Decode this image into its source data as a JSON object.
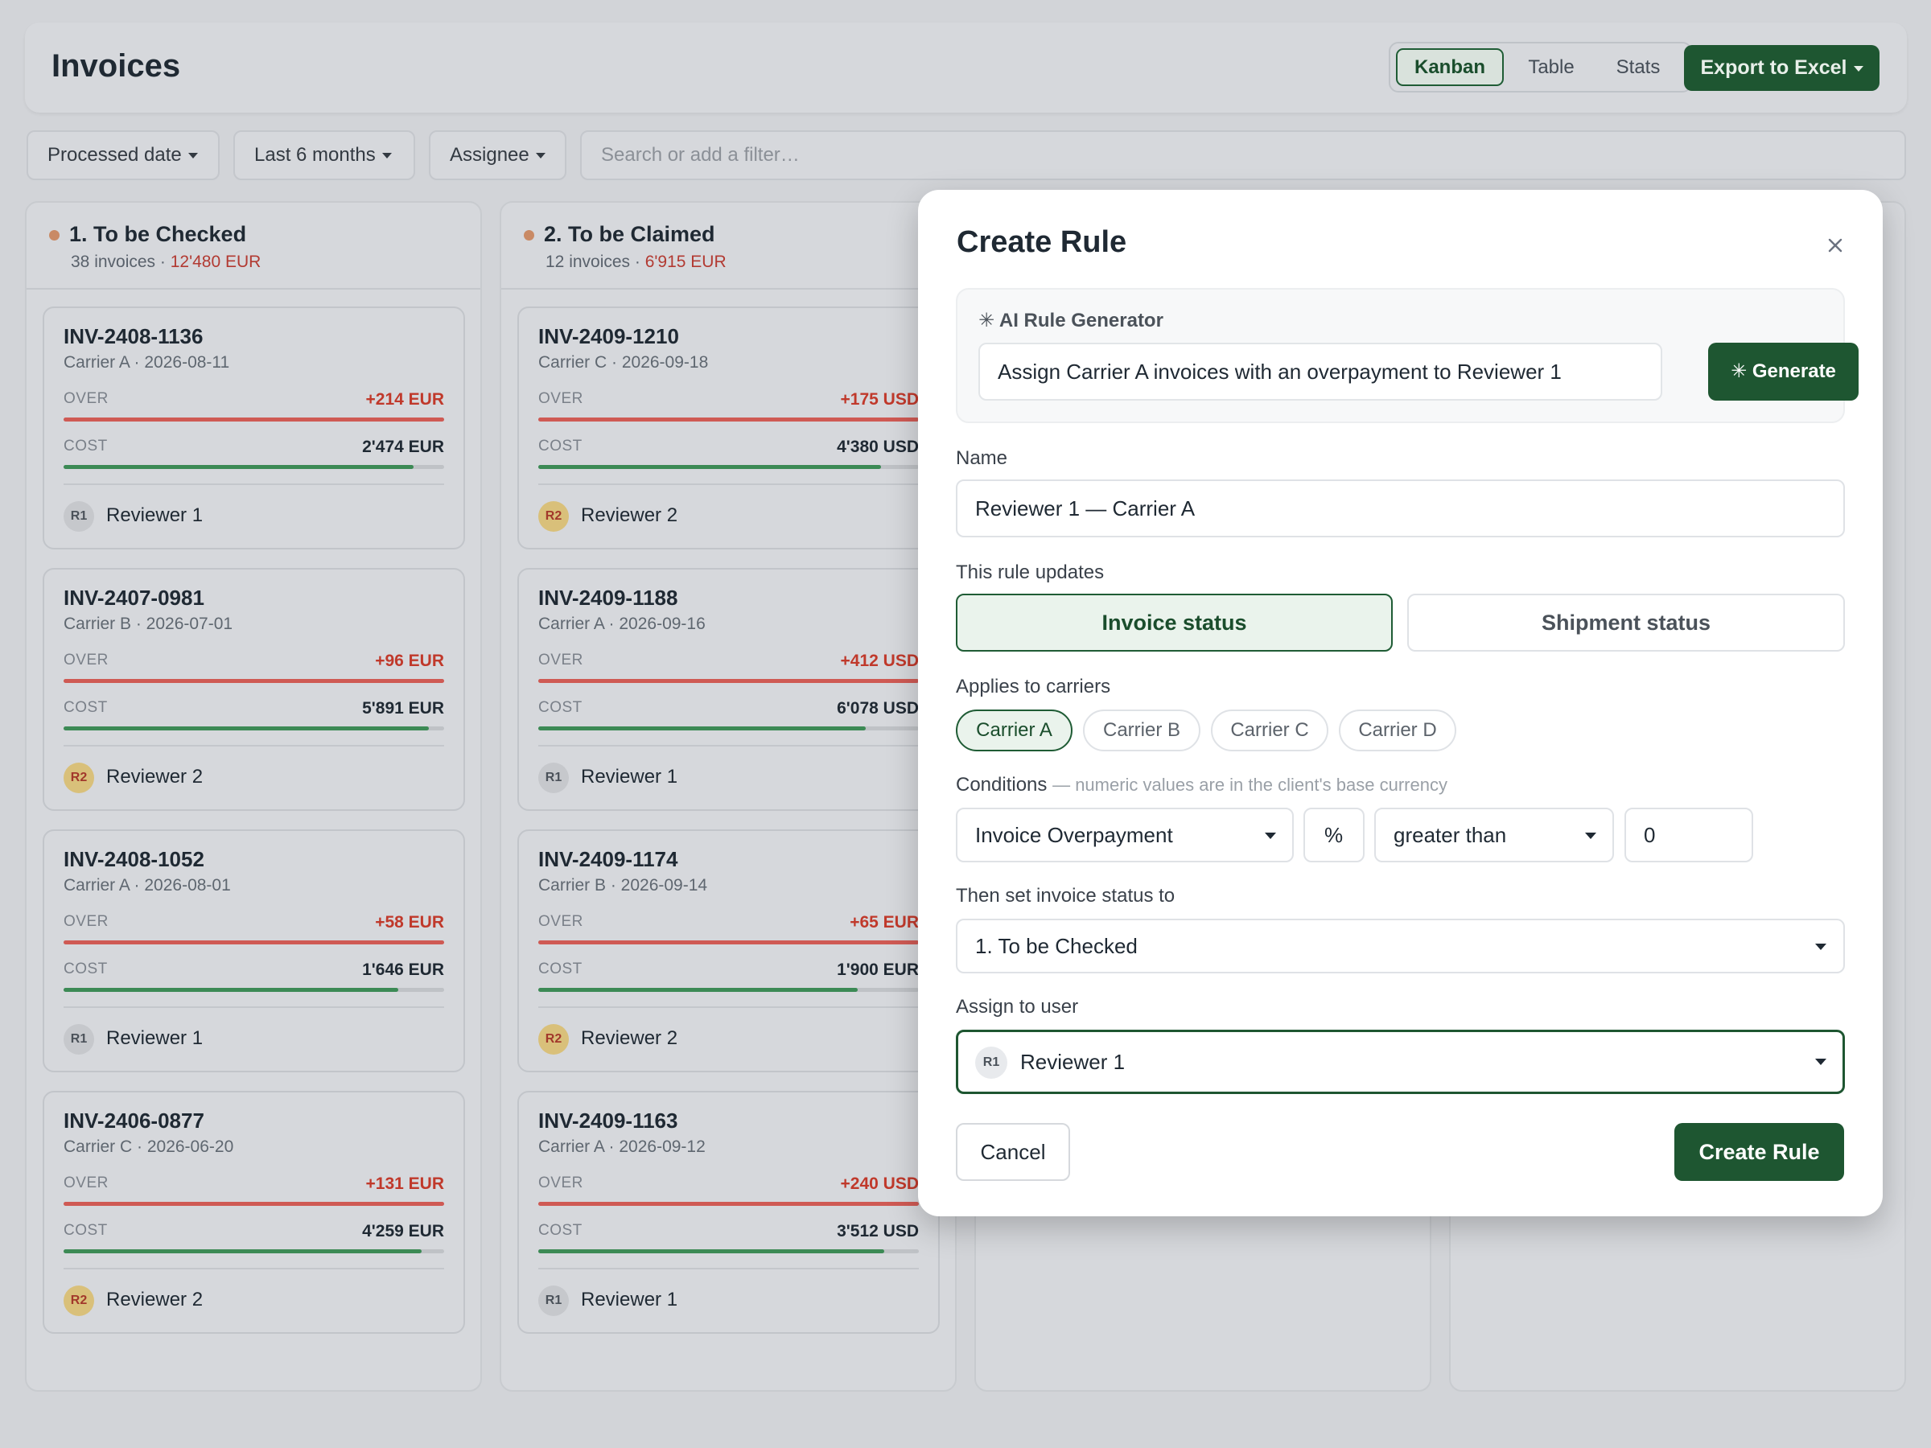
{
  "header": {
    "title": "Invoices",
    "views": [
      "Kanban",
      "Table",
      "Stats"
    ],
    "active_view": "Kanban",
    "export_label": "Export to Excel"
  },
  "filters": {
    "processed_date": "Processed date",
    "range": "Last 6 months",
    "assignee": "Assignee",
    "search_placeholder": "Search or add a filter…"
  },
  "columns": [
    {
      "title": "1. To be Checked",
      "count_text": "38 invoices",
      "amount": "12'480 EUR",
      "cards": [
        {
          "id": "INV-2408-1136",
          "meta": "Carrier A · 2026-08-11",
          "over_label": "OVER",
          "over": "+214 EUR",
          "over_pct": 100,
          "cost_label": "COST",
          "cost": "2'474 EUR",
          "cost_pct": 92,
          "avatar": "R1",
          "assignee": "Reviewer 1"
        },
        {
          "id": "INV-2407-0981",
          "meta": "Carrier B · 2026-07-01",
          "over_label": "OVER",
          "over": "+96 EUR",
          "over_pct": 100,
          "cost_label": "COST",
          "cost": "5'891 EUR",
          "cost_pct": 96,
          "avatar": "R2",
          "assignee": "Reviewer 2"
        },
        {
          "id": "INV-2408-1052",
          "meta": "Carrier A · 2026-08-01",
          "over_label": "OVER",
          "over": "+58 EUR",
          "over_pct": 100,
          "cost_label": "COST",
          "cost": "1'646 EUR",
          "cost_pct": 88,
          "avatar": "R1",
          "assignee": "Reviewer 1"
        },
        {
          "id": "INV-2406-0877",
          "meta": "Carrier C · 2026-06-20",
          "over_label": "OVER",
          "over": "+131 EUR",
          "over_pct": 100,
          "cost_label": "COST",
          "cost": "4'259 EUR",
          "cost_pct": 94,
          "avatar": "R2",
          "assignee": "Reviewer 2"
        }
      ]
    },
    {
      "title": "2. To be Claimed",
      "count_text": "12 invoices",
      "amount": "6'915 EUR",
      "cards": [
        {
          "id": "INV-2409-1210",
          "meta": "Carrier C · 2026-09-18",
          "over_label": "OVER",
          "over": "+175 USD",
          "over_pct": 100,
          "cost_label": "COST",
          "cost": "4'380 USD",
          "cost_pct": 90,
          "avatar": "R2",
          "assignee": "Reviewer 2"
        },
        {
          "id": "INV-2409-1188",
          "meta": "Carrier A · 2026-09-16",
          "over_label": "OVER",
          "over": "+412 USD",
          "over_pct": 100,
          "cost_label": "COST",
          "cost": "6'078 USD",
          "cost_pct": 86,
          "avatar": "R1",
          "assignee": "Reviewer 1"
        },
        {
          "id": "INV-2409-1174",
          "meta": "Carrier B · 2026-09-14",
          "over_label": "OVER",
          "over": "+65 EUR",
          "over_pct": 100,
          "cost_label": "COST",
          "cost": "1'900 EUR",
          "cost_pct": 84,
          "avatar": "R2",
          "assignee": "Reviewer 2"
        },
        {
          "id": "INV-2409-1163",
          "meta": "Carrier A · 2026-09-12",
          "over_label": "OVER",
          "over": "+240 USD",
          "over_pct": 100,
          "cost_label": "COST",
          "cost": "3'512 USD",
          "cost_pct": 91,
          "avatar": "R1",
          "assignee": "Reviewer 1"
        }
      ]
    }
  ],
  "modal": {
    "title": "Create Rule",
    "ai": {
      "label": "✳ AI Rule Generator",
      "prompt": "Assign Carrier A invoices with an overpayment to Reviewer 1",
      "generate_label": "✳ Generate"
    },
    "name_label": "Name",
    "name_value": "Reviewer 1 — Carrier A",
    "updates_label": "This rule updates",
    "updates_options": [
      "Invoice status",
      "Shipment status"
    ],
    "updates_selected": "Invoice status",
    "carriers_label": "Applies to carriers",
    "carriers": [
      "Carrier A",
      "Carrier B",
      "Carrier C",
      "Carrier D"
    ],
    "carriers_selected": [
      "Carrier A"
    ],
    "conditions_label": "Conditions",
    "conditions_hint": "— numeric values are in the client's base currency",
    "condition": {
      "field": "Invoice Overpayment",
      "unit": "%",
      "operator": "greater than",
      "value": "0"
    },
    "then_label": "Then set invoice status to",
    "then_value": "1. To be Checked",
    "assign_label": "Assign to user",
    "assign_avatar": "R1",
    "assign_value": "Reviewer 1",
    "cancel_label": "Cancel",
    "create_label": "Create Rule"
  },
  "colors": {
    "accent": "#1e5631",
    "over": "#c0392b",
    "cost_bar": "#3c8a55",
    "over_bar": "#cf5a54"
  }
}
